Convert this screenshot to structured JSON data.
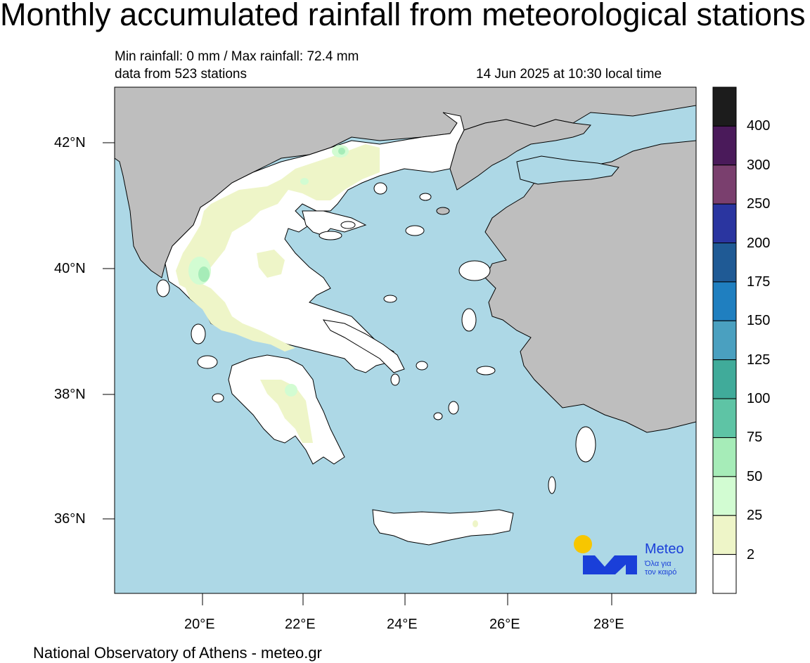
{
  "title": "Monthly accumulated rainfall from meteorological stations",
  "rainfall_range": "Min rainfall: 0 mm / Max rainfall: 72.4 mm",
  "stations": "data from 523 stations",
  "timestamp": "14 Jun 2025 at 10:30 local time",
  "footer": "National Observatory of Athens - meteo.gr",
  "logo": {
    "name": "Meteo",
    "tagline_1": "Όλα για",
    "tagline_2": "τον καιρό"
  },
  "map": {
    "lat_labels": [
      "42°N",
      "40°N",
      "38°N",
      "36°N"
    ],
    "lon_labels": [
      "20°E",
      "22°E",
      "24°E",
      "26°E",
      "28°E"
    ]
  },
  "colorbar": {
    "labels": [
      "400",
      "300",
      "250",
      "200",
      "175",
      "150",
      "125",
      "100",
      "75",
      "50",
      "25",
      "2"
    ],
    "colors": [
      "#1c1c1c",
      "#4a1a5a",
      "#7a3f6e",
      "#2a35a0",
      "#1f5a95",
      "#1f7fc0",
      "#4aa0c0",
      "#40ab9a",
      "#5ec4a5",
      "#a6ecb8",
      "#d2fcd2",
      "#eef5c8",
      "#ffffff"
    ]
  },
  "colors": {
    "sea": "#add8e6",
    "land_outside": "#bebebe",
    "greece_land": "#ffffff",
    "logo_blue": "#1a3fd9",
    "logo_sun": "#f7c600"
  }
}
